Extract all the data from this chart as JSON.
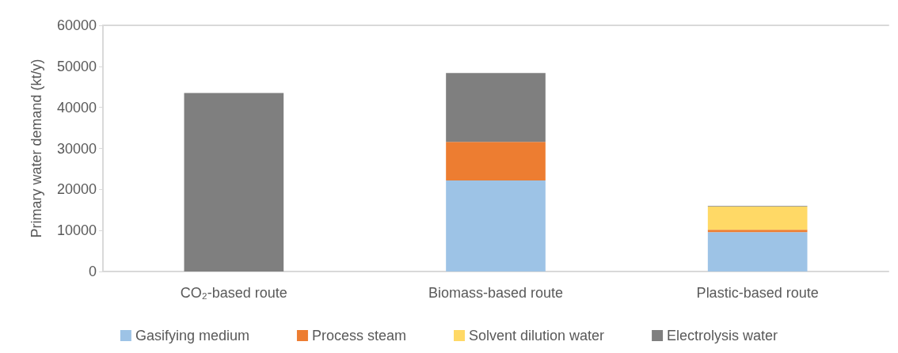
{
  "chart_data": {
    "type": "bar",
    "stacked": true,
    "ylabel": "Primary water demand (kt/y)",
    "categories": [
      "CO₂-based route",
      "Biomass-based route",
      "Plastic-based route"
    ],
    "series": [
      {
        "name": "Gasifying medium",
        "color": "#9dc3e6",
        "values": [
          null,
          22200,
          9600
        ]
      },
      {
        "name": "Process steam",
        "color": "#ed7d31",
        "values": [
          null,
          9400,
          600
        ]
      },
      {
        "name": "Solvent dilution water",
        "color": "#ffd966",
        "values": [
          null,
          null,
          5600
        ]
      },
      {
        "name": "Electrolysis water",
        "color": "#7f7f7f",
        "values": [
          43500,
          16800,
          150
        ]
      }
    ],
    "ylim": [
      0,
      60000
    ],
    "yticks": [
      0,
      10000,
      20000,
      30000,
      40000,
      50000,
      60000
    ],
    "grid": false,
    "legend": "bottom"
  }
}
